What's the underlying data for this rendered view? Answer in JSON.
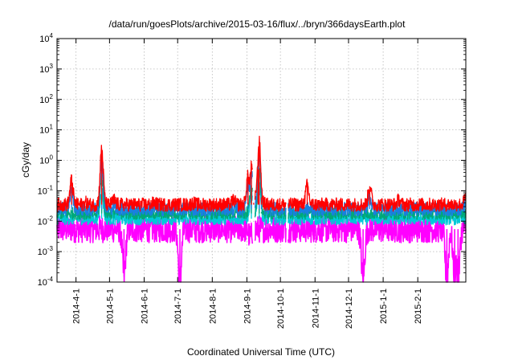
{
  "chart_data": {
    "type": "line",
    "title": "/data/run/goesPlots/archive/2015-03-16/flux/../bryn/366daysEarth.plot",
    "xlabel": "Coordinated Universal Time (UTC)",
    "ylabel": "cGy/day",
    "yscale": "log",
    "ylim": [
      0.0001,
      10000
    ],
    "xlim": [
      "2014-03-15",
      "2015-03-16"
    ],
    "grid": true,
    "y_ticks": [
      {
        "base": "10",
        "exp": "-4"
      },
      {
        "base": "10",
        "exp": "-3"
      },
      {
        "base": "10",
        "exp": "-2"
      },
      {
        "base": "10",
        "exp": "-1"
      },
      {
        "base": "10",
        "exp": "0"
      },
      {
        "base": "10",
        "exp": "1"
      },
      {
        "base": "10",
        "exp": "2"
      },
      {
        "base": "10",
        "exp": "3"
      },
      {
        "base": "10",
        "exp": "4"
      }
    ],
    "x_ticks": [
      "2014-4-1",
      "2014-5-1",
      "2014-6-1",
      "2014-7-1",
      "2014-8-1",
      "2014-9-1",
      "2014-10-1",
      "2014-11-1",
      "2014-12-1",
      "2015-1-1",
      "2015-2-1"
    ],
    "series": [
      {
        "color": "#ff0000",
        "baseline": 0.035,
        "noise": 0.45,
        "points": [
          [
            "2014-03-15",
            0.035
          ],
          [
            "2014-03-28",
            0.22
          ],
          [
            "2014-04-10",
            0.04
          ],
          [
            "2014-04-24",
            2.4
          ],
          [
            "2014-05-05",
            0.05
          ],
          [
            "2014-06-10",
            0.04
          ],
          [
            "2014-07-15",
            0.04
          ],
          [
            "2014-08-20",
            0.05
          ],
          [
            "2014-09-02",
            0.3
          ],
          [
            "2014-09-05",
            0.6
          ],
          [
            "2014-09-07",
            0.04
          ],
          [
            "2014-09-11",
            0.5
          ],
          [
            "2014-09-12",
            4.0
          ],
          [
            "2014-09-14",
            0.06
          ],
          [
            "2014-10-25",
            0.15
          ],
          [
            "2014-12-20",
            0.14
          ],
          [
            "2015-01-15",
            0.05
          ],
          [
            "2015-03-16",
            0.06
          ]
        ]
      },
      {
        "color": "#1a7fe0",
        "baseline": 0.025,
        "noise": 0.45,
        "points": [
          [
            "2014-03-15",
            0.025
          ],
          [
            "2014-03-28",
            0.12
          ],
          [
            "2014-04-24",
            1.4
          ],
          [
            "2014-05-05",
            0.035
          ],
          [
            "2014-09-02",
            0.2
          ],
          [
            "2014-09-05",
            0.45
          ],
          [
            "2014-09-12",
            2.3
          ],
          [
            "2014-09-14",
            0.045
          ],
          [
            "2014-12-20",
            0.06
          ],
          [
            "2015-03-16",
            0.04
          ]
        ]
      },
      {
        "color": "#00a878",
        "baseline": 0.018,
        "noise": 0.4,
        "points": [
          [
            "2014-03-15",
            0.018
          ],
          [
            "2014-04-24",
            0.3
          ],
          [
            "2014-05-05",
            0.02
          ],
          [
            "2014-09-05",
            0.15
          ],
          [
            "2014-09-12",
            0.5
          ],
          [
            "2014-09-14",
            0.02
          ],
          [
            "2015-03-16",
            0.02
          ]
        ]
      },
      {
        "color": "#00c8d8",
        "baseline": 0.012,
        "noise": 0.4,
        "points": [
          [
            "2014-03-15",
            0.012
          ],
          [
            "2014-04-24",
            0.1
          ],
          [
            "2014-09-05",
            0.08
          ],
          [
            "2014-09-12",
            0.2
          ],
          [
            "2015-03-16",
            0.012
          ]
        ]
      },
      {
        "color": "#ff00ff",
        "baseline": 0.0055,
        "noise": 0.9,
        "points": [
          [
            "2014-03-15",
            0.0055
          ],
          [
            "2014-05-14",
            0.00015
          ],
          [
            "2014-07-03",
            0.0001
          ],
          [
            "2014-09-04",
            0.003
          ],
          [
            "2014-12-14",
            0.0001
          ],
          [
            "2015-02-27",
            0.0001
          ],
          [
            "2015-03-06",
            0.0001
          ],
          [
            "2015-03-09",
            0.0001
          ],
          [
            "2015-03-16",
            0.0055
          ]
        ]
      }
    ],
    "gaps": [
      [
        "2014-09-06",
        "2014-09-08"
      ],
      [
        "2014-10-06",
        "2014-10-08"
      ]
    ]
  }
}
